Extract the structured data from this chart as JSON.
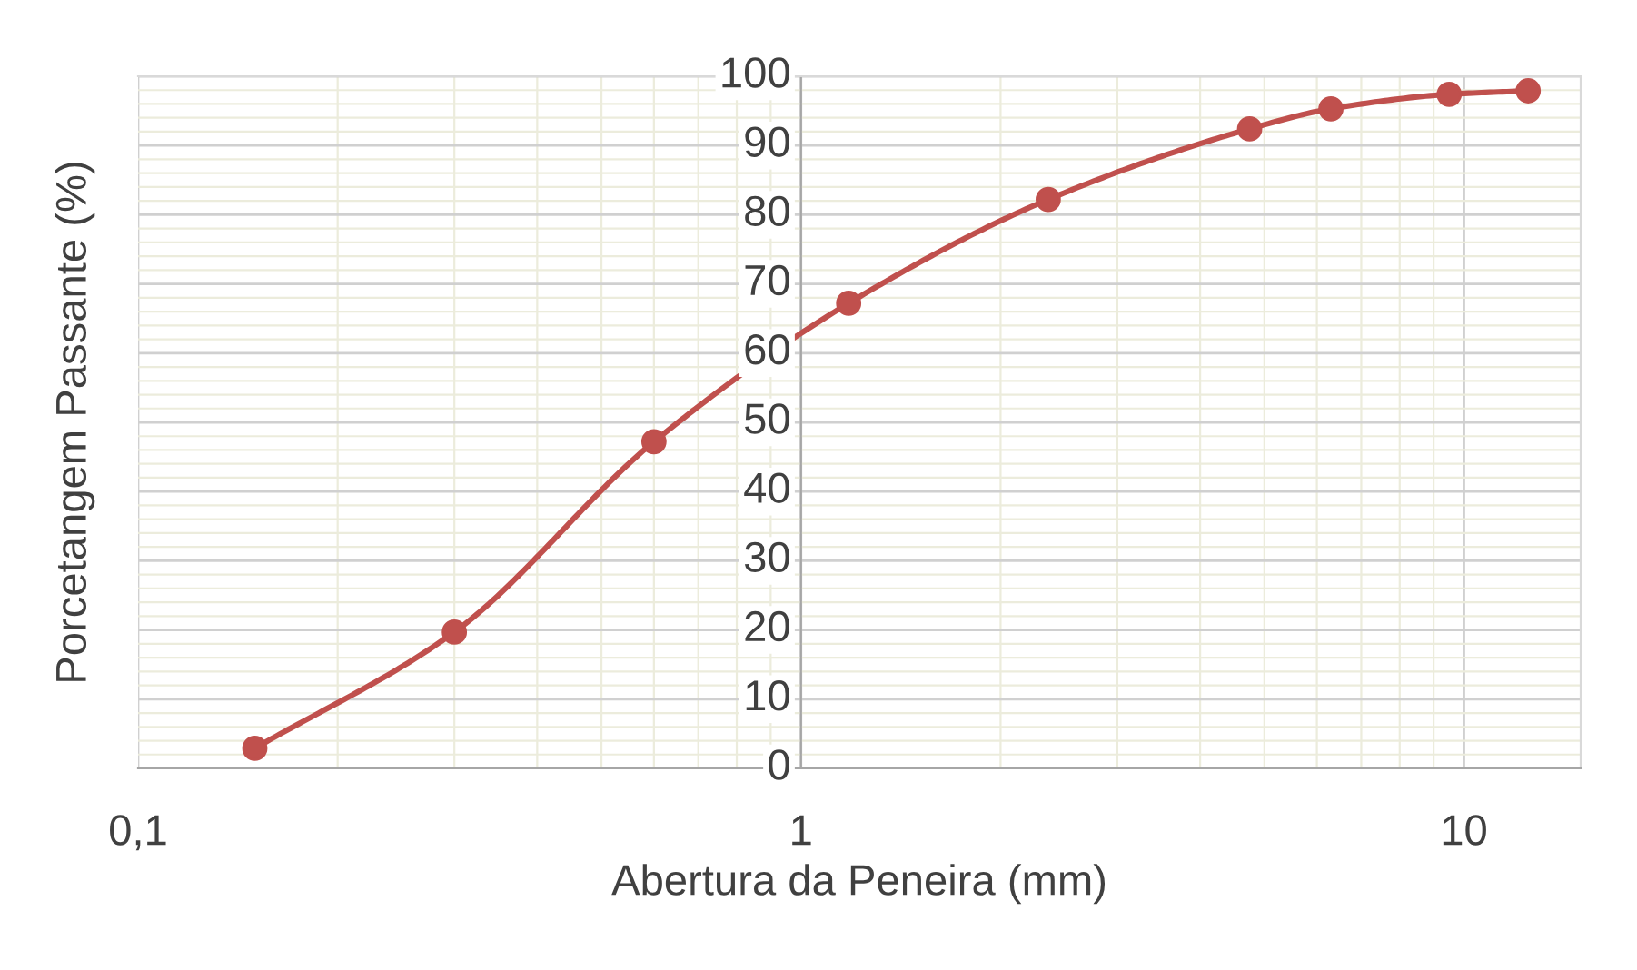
{
  "chart_data": {
    "type": "line",
    "xlabel": "Abertura da Peneira (mm)",
    "ylabel": "Porcetangem Passante (%)",
    "x": [
      0.15,
      0.3,
      0.6,
      1.18,
      2.36,
      4.75,
      6.3,
      9.5,
      12.5
    ],
    "series": [
      {
        "color": "#c0504d",
        "values": [
          2.9,
          19.7,
          47.2,
          67.2,
          82.2,
          92.4,
          95.3,
          97.4,
          97.9
        ]
      }
    ],
    "log": "x",
    "xlim": [
      0.1,
      15
    ],
    "xticks": [
      {
        "value": 0.1,
        "label": "0,1"
      },
      1,
      10
    ],
    "ylim": [
      0,
      100
    ],
    "yticks": [
      0,
      10,
      20,
      30,
      40,
      50,
      60,
      70,
      80,
      90,
      100
    ],
    "grid": true,
    "marker": "circle",
    "line_style": "solid",
    "legend": false
  }
}
